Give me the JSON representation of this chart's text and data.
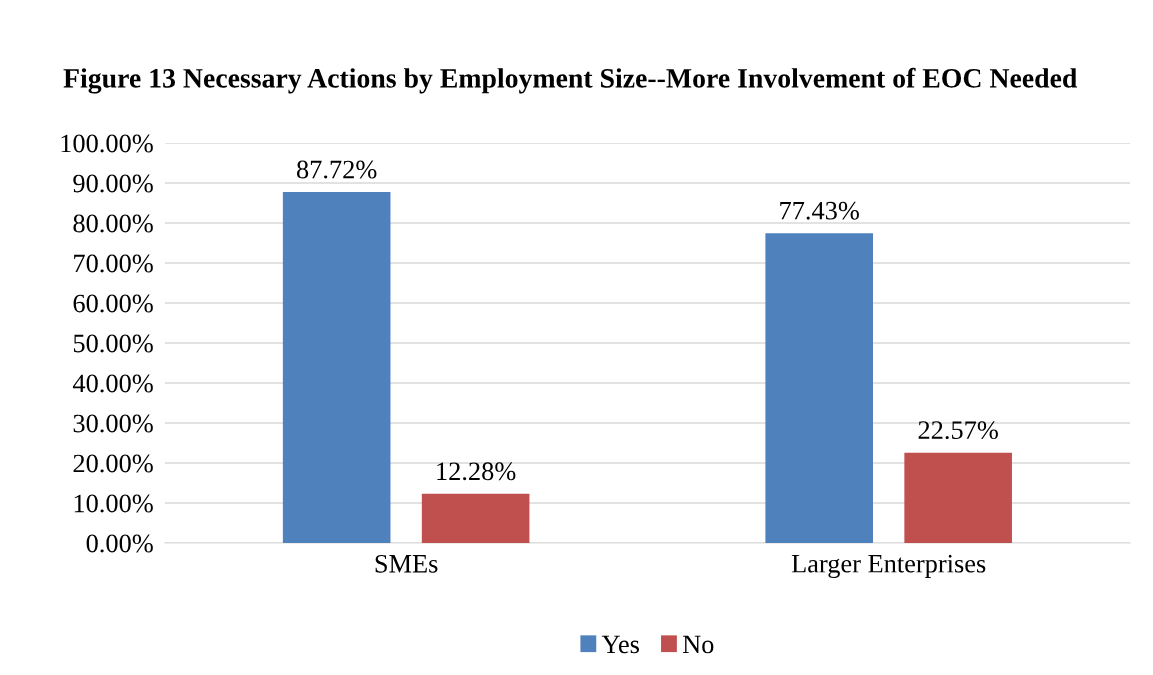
{
  "chart_data": {
    "type": "bar",
    "title": "Figure 13 Necessary Actions by Employment Size--More Involvement of EOC Needed",
    "categories": [
      "SMEs",
      "Larger Enterprises"
    ],
    "series": [
      {
        "name": "Yes",
        "color": "#4f81bd",
        "values": [
          87.72,
          77.43
        ],
        "value_labels": [
          "87.72%",
          "77.43%"
        ]
      },
      {
        "name": "No",
        "color": "#c0504d",
        "values": [
          12.28,
          22.57
        ],
        "value_labels": [
          "12.28%",
          "22.57%"
        ]
      }
    ],
    "ylim": [
      0,
      100
    ],
    "yticks": [
      {
        "value": 0,
        "label": "0.00%"
      },
      {
        "value": 10,
        "label": "10.00%"
      },
      {
        "value": 20,
        "label": "20.00%"
      },
      {
        "value": 30,
        "label": "30.00%"
      },
      {
        "value": 40,
        "label": "40.00%"
      },
      {
        "value": 50,
        "label": "50.00%"
      },
      {
        "value": 60,
        "label": "60.00%"
      },
      {
        "value": 70,
        "label": "70.00%"
      },
      {
        "value": 80,
        "label": "80.00%"
      },
      {
        "value": 90,
        "label": "90.00%"
      },
      {
        "value": 100,
        "label": "100.00%"
      }
    ],
    "grid": "y",
    "legend": "bottom"
  }
}
